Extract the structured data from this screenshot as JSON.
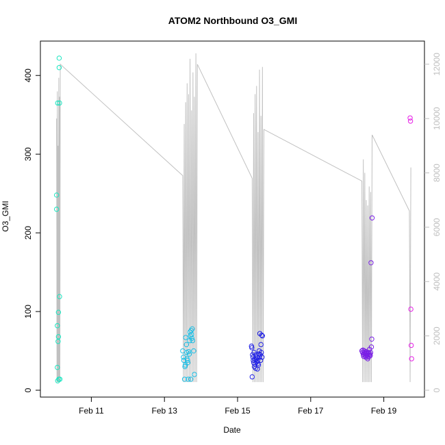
{
  "chart_data": {
    "type": "scatter",
    "title": "ATOM2 Northbound O3_GMI",
    "xlabel": "Date",
    "ylabel": "O3_GMI",
    "x_ticks": [
      "Feb 11",
      "Feb 13",
      "Feb 15",
      "Feb 17",
      "Feb 19"
    ],
    "y_ticks": [
      "0",
      "100",
      "200",
      "300",
      "400"
    ],
    "y2_ticks": [
      "0",
      "2000",
      "4000",
      "6000",
      "8000",
      "10000",
      "12000"
    ],
    "xlim": [
      9.85,
      19.85
    ],
    "ylim": [
      0,
      435
    ],
    "y2lim": [
      0,
      12600
    ],
    "grid": false,
    "colors": {
      "points_early": "#19e6c0",
      "points_feb13": "#1bbfe6",
      "points_feb15": "#1f1fe6",
      "points_feb18": "#7a1fe6",
      "points_feb19": "#e61fe6",
      "altitude_line": "#c0c0c0"
    },
    "series": [
      {
        "color": "#19e6c0",
        "x": [
          10.05,
          10.05,
          10.07,
          10.07,
          10.08,
          10.08,
          10.09,
          10.1,
          10.1,
          10.11,
          10.12,
          10.12,
          10.13,
          10.13,
          10.14
        ],
        "y": [
          230,
          248,
          82,
          29,
          12,
          365,
          62,
          99,
          68,
          14,
          422,
          410,
          119,
          365,
          14
        ]
      },
      {
        "color": "#1bbfe6",
        "x": [
          13.5,
          13.52,
          13.53,
          13.55,
          13.56,
          13.57,
          13.58,
          13.6,
          13.61,
          13.62,
          13.63,
          13.64,
          13.65,
          13.66,
          13.68,
          13.69,
          13.7,
          13.71,
          13.72,
          13.73,
          13.74,
          13.75,
          13.76,
          13.77,
          13.8,
          13.82
        ],
        "y": [
          50,
          42,
          38,
          14,
          30,
          32,
          67,
          58,
          48,
          40,
          38,
          35,
          14,
          49,
          46,
          63,
          74,
          69,
          14,
          76,
          71,
          66,
          78,
          63,
          50,
          20
        ]
      },
      {
        "color": "#1f1fe6",
        "x": [
          15.38,
          15.39,
          15.4,
          15.41,
          15.42,
          15.43,
          15.44,
          15.45,
          15.46,
          15.47,
          15.48,
          15.49,
          15.5,
          15.51,
          15.52,
          15.53,
          15.54,
          15.55,
          15.56,
          15.57,
          15.58,
          15.59,
          15.6,
          15.61,
          15.62,
          15.63,
          15.64,
          15.65,
          15.66,
          15.67,
          15.68
        ],
        "y": [
          56,
          54,
          17,
          45,
          42,
          38,
          35,
          48,
          30,
          39,
          33,
          28,
          45,
          40,
          36,
          42,
          27,
          38,
          34,
          32,
          46,
          50,
          42,
          72,
          45,
          38,
          58,
          48,
          70,
          42,
          69
        ]
      },
      {
        "color": "#7a1fe6",
        "x": [
          18.4,
          18.42,
          18.43,
          18.44,
          18.45,
          18.46,
          18.47,
          18.48,
          18.49,
          18.5,
          18.51,
          18.52,
          18.53,
          18.54,
          18.55,
          18.56,
          18.57,
          18.58,
          18.59,
          18.6,
          18.61,
          18.62,
          18.63,
          18.64,
          18.65,
          18.66,
          18.67,
          18.68
        ],
        "y": [
          50,
          48,
          51,
          45,
          43,
          47,
          50,
          48,
          44,
          46,
          42,
          49,
          47,
          44,
          46,
          40,
          42,
          48,
          45,
          43,
          52,
          46,
          44,
          48,
          162,
          55,
          65,
          219
        ]
      },
      {
        "color": "#e61fe6",
        "x": [
          19.72,
          19.73,
          19.74,
          19.75,
          19.76
        ],
        "y": [
          346,
          342,
          103,
          57,
          40
        ]
      }
    ],
    "altitude_line": {
      "x": [
        10.05,
        10.07,
        10.09,
        10.11,
        10.13,
        10.15,
        13.5,
        13.54,
        13.58,
        13.62,
        13.66,
        13.7,
        13.74,
        13.78,
        13.82,
        13.86,
        13.9,
        15.4,
        15.44,
        15.48,
        15.52,
        15.56,
        15.6,
        15.64,
        15.68,
        15.72,
        18.4,
        18.44,
        18.48,
        18.52,
        18.56,
        18.6,
        18.64,
        18.68,
        19.7,
        19.74
      ],
      "y": [
        10000,
        11000,
        9000,
        11500,
        10800,
        12000,
        7900,
        9800,
        10600,
        11300,
        10900,
        12200,
        10300,
        11700,
        10800,
        12400,
        12000,
        7800,
        10200,
        10900,
        11200,
        9500,
        11800,
        10100,
        11900,
        9600,
        7700,
        8500,
        8000,
        7000,
        6800,
        7500,
        7300,
        9400,
        6600,
        8200
      ]
    }
  }
}
